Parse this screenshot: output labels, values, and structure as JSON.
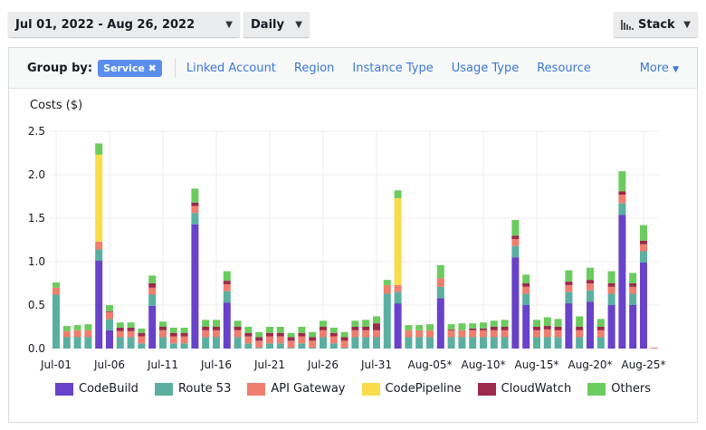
{
  "toolbar": {
    "date_range": "Jul 01, 2022 - Aug 26, 2022",
    "granularity": "Daily",
    "chart_style": "Stack",
    "chart_style_icon": "bar-chart-icon",
    "caret_icon": "caret-down-icon"
  },
  "group_by": {
    "label": "Group by:",
    "selected": "Service",
    "remove_icon": "close-icon",
    "options": [
      "Linked Account",
      "Region",
      "Instance Type",
      "Usage Type",
      "Resource"
    ],
    "more": "More"
  },
  "chart_data": {
    "type": "bar",
    "stacked": true,
    "ylabel": "Costs ($)",
    "ylim": [
      0,
      2.5
    ],
    "yticks": [
      "0.0",
      "0.5",
      "1.0",
      "1.5",
      "2.0",
      "2.5"
    ],
    "grid": true,
    "legend_position": "bottom",
    "xtick_labels": [
      "Jul-01",
      "Jul-06",
      "Jul-11",
      "Jul-16",
      "Jul-21",
      "Jul-26",
      "Jul-31",
      "Aug-05*",
      "Aug-10*",
      "Aug-15*",
      "Aug-20*",
      "Aug-25*"
    ],
    "categories": [
      "Jul-01",
      "Jul-02",
      "Jul-03",
      "Jul-04",
      "Jul-05",
      "Jul-06",
      "Jul-07",
      "Jul-08",
      "Jul-09",
      "Jul-10",
      "Jul-11",
      "Jul-12",
      "Jul-13",
      "Jul-14",
      "Jul-15",
      "Jul-16",
      "Jul-17",
      "Jul-18",
      "Jul-19",
      "Jul-20",
      "Jul-21",
      "Jul-22",
      "Jul-23",
      "Jul-24",
      "Jul-25",
      "Jul-26",
      "Jul-27",
      "Jul-28",
      "Jul-29",
      "Jul-30",
      "Jul-31",
      "Aug-01",
      "Aug-02",
      "Aug-03",
      "Aug-04",
      "Aug-05*",
      "Aug-06*",
      "Aug-07*",
      "Aug-08*",
      "Aug-09*",
      "Aug-10*",
      "Aug-11*",
      "Aug-12*",
      "Aug-13*",
      "Aug-14*",
      "Aug-15*",
      "Aug-16*",
      "Aug-17*",
      "Aug-18*",
      "Aug-19*",
      "Aug-20*",
      "Aug-21*",
      "Aug-22*",
      "Aug-23*",
      "Aug-24*",
      "Aug-25*",
      "Aug-26*"
    ],
    "series": [
      {
        "name": "CodeBuild",
        "color": "#6842c8",
        "values": [
          0,
          0,
          0,
          0,
          1.01,
          0.21,
          0,
          0,
          0,
          0.49,
          0,
          0,
          0,
          1.43,
          0,
          0,
          0.53,
          0,
          0,
          0,
          0,
          0,
          0,
          0,
          0,
          0,
          0,
          0,
          0,
          0,
          0,
          0,
          0.52,
          0,
          0,
          0,
          0.58,
          0,
          0,
          0,
          0,
          0,
          0,
          1.05,
          0.5,
          0,
          0,
          0,
          0.52,
          0,
          0.54,
          0,
          0.5,
          1.54,
          0.5,
          0.99,
          0
        ]
      },
      {
        "name": "Route 53",
        "color": "#5aafa0",
        "values": [
          0.62,
          0.13,
          0.13,
          0.13,
          0.13,
          0.13,
          0.13,
          0.13,
          0.06,
          0.13,
          0.13,
          0.06,
          0.06,
          0.13,
          0.13,
          0.13,
          0.13,
          0.13,
          0.06,
          0.01,
          0.06,
          0.06,
          0.01,
          0.06,
          0.01,
          0.13,
          0.06,
          0.01,
          0.13,
          0.13,
          0.13,
          0.63,
          0.13,
          0.13,
          0.13,
          0.13,
          0.13,
          0.13,
          0.13,
          0.13,
          0.13,
          0.13,
          0.13,
          0.13,
          0.13,
          0.13,
          0.13,
          0.13,
          0.13,
          0.13,
          0.13,
          0.13,
          0.13,
          0.13,
          0.13,
          0.13,
          0
        ]
      },
      {
        "name": "API Gateway",
        "color": "#f07e6e",
        "values": [
          0.08,
          0.07,
          0.08,
          0.08,
          0.09,
          0.08,
          0.07,
          0.07,
          0.08,
          0.08,
          0.08,
          0.08,
          0.08,
          0.08,
          0.08,
          0.08,
          0.08,
          0.08,
          0.08,
          0.08,
          0.08,
          0.08,
          0.08,
          0.08,
          0.08,
          0.08,
          0.08,
          0.08,
          0.08,
          0.08,
          0.08,
          0.1,
          0.08,
          0.08,
          0.08,
          0.08,
          0.1,
          0.08,
          0.08,
          0.08,
          0.08,
          0.08,
          0.08,
          0.08,
          0.08,
          0.08,
          0.09,
          0.08,
          0.08,
          0.08,
          0.08,
          0.08,
          0.08,
          0.1,
          0.08,
          0.08,
          0.01
        ]
      },
      {
        "name": "CodePipeline",
        "color": "#f8dc4a",
        "values": [
          0,
          0,
          0,
          0,
          1.0,
          0,
          0,
          0,
          0,
          0,
          0,
          0,
          0,
          0,
          0,
          0,
          0,
          0,
          0,
          0,
          0,
          0,
          0,
          0,
          0,
          0,
          0,
          0,
          0,
          0,
          0,
          0,
          1.0,
          0,
          0,
          0,
          0,
          0,
          0,
          0,
          0,
          0,
          0,
          0,
          0,
          0,
          0,
          0,
          0,
          0,
          0,
          0,
          0,
          0,
          0,
          0,
          0
        ]
      },
      {
        "name": "CloudWatch",
        "color": "#9c2a4c",
        "values": [
          0,
          0,
          0,
          0,
          0,
          0.01,
          0.04,
          0.04,
          0.04,
          0.05,
          0.04,
          0.04,
          0.04,
          0.04,
          0.04,
          0.04,
          0.04,
          0.04,
          0.04,
          0.04,
          0.04,
          0.04,
          0.04,
          0.04,
          0.04,
          0.04,
          0.04,
          0.04,
          0.04,
          0.04,
          0.08,
          0,
          0,
          0,
          0,
          0,
          0,
          0.01,
          0,
          0.02,
          0.02,
          0.04,
          0.04,
          0.04,
          0.04,
          0.04,
          0.04,
          0.04,
          0.04,
          0.04,
          0.04,
          0.04,
          0.04,
          0.04,
          0.04,
          0.04,
          0
        ]
      },
      {
        "name": "Others",
        "color": "#6ccb5f",
        "values": [
          0.06,
          0.06,
          0.06,
          0.07,
          0.13,
          0.07,
          0.06,
          0.06,
          0.05,
          0.09,
          0.06,
          0.06,
          0.06,
          0.16,
          0.08,
          0.08,
          0.11,
          0.07,
          0.07,
          0.06,
          0.07,
          0.07,
          0.05,
          0.07,
          0.06,
          0.07,
          0.06,
          0.06,
          0.07,
          0.08,
          0.08,
          0.06,
          0.09,
          0.06,
          0.06,
          0.07,
          0.15,
          0.06,
          0.08,
          0.06,
          0.07,
          0.07,
          0.08,
          0.18,
          0.1,
          0.08,
          0.1,
          0.09,
          0.13,
          0.12,
          0.14,
          0.09,
          0.14,
          0.23,
          0.12,
          0.18,
          0
        ]
      }
    ]
  }
}
